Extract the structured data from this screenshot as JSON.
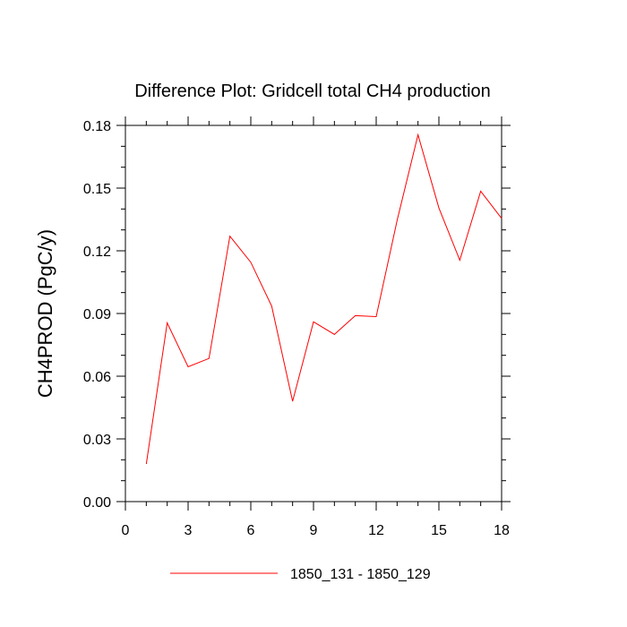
{
  "chart_data": {
    "type": "line",
    "title": "Difference Plot: Gridcell total CH4 production",
    "xlabel": "",
    "ylabel": "CH4PROD  (PgC/y)",
    "xlim": [
      0,
      18
    ],
    "ylim": [
      0,
      0.18
    ],
    "xticks": [
      0,
      3,
      6,
      9,
      12,
      15,
      18
    ],
    "xtick_labels": [
      "0",
      "3",
      "6",
      "9",
      "12",
      "15",
      "18"
    ],
    "yticks": [
      0,
      0.03,
      0.06,
      0.09,
      0.12,
      0.15,
      0.18
    ],
    "ytick_labels": [
      "0.00",
      "0.03",
      "0.06",
      "0.09",
      "0.12",
      "0.15",
      "0.18"
    ],
    "grid": false,
    "legend_position": "bottom-center",
    "series": [
      {
        "name": "1850_131 - 1850_129",
        "color": "#ff0000",
        "x": [
          1,
          2,
          3,
          4,
          5,
          6,
          7,
          8,
          9,
          10,
          11,
          12,
          13,
          14,
          15,
          16,
          17,
          18
        ],
        "values": [
          0.018,
          0.0855,
          0.0645,
          0.0685,
          0.127,
          0.1145,
          0.0935,
          0.048,
          0.086,
          0.08,
          0.089,
          0.0885,
          0.1345,
          0.1755,
          0.1405,
          0.1155,
          0.1485,
          0.1355
        ]
      }
    ]
  }
}
